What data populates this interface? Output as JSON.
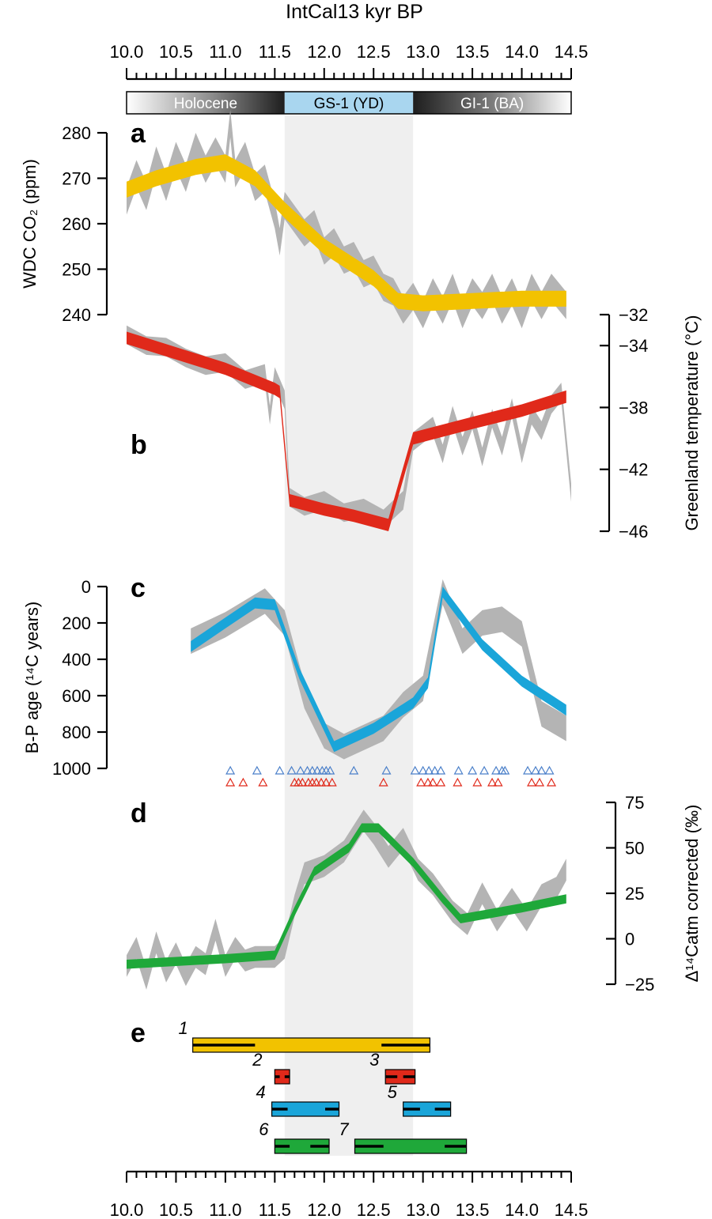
{
  "chart_data": {
    "type": "line",
    "title": "IntCal13 kyr BP",
    "x_axis": {
      "label": "IntCal13 kyr BP",
      "range": [
        10.0,
        14.5
      ],
      "ticks": [
        "10.0",
        "10.5",
        "11.0",
        "11.5",
        "12.0",
        "12.5",
        "13.0",
        "13.5",
        "14.0",
        "14.5"
      ]
    },
    "zones": [
      {
        "name": "Holocene",
        "start": 10.0,
        "end": 11.6
      },
      {
        "name": "GS-1 (YD)",
        "start": 11.6,
        "end": 12.9
      },
      {
        "name": "GI-1 (BA)",
        "start": 12.9,
        "end": 14.5
      }
    ],
    "yd_shading": [
      11.6,
      12.9
    ],
    "panels": [
      {
        "label": "a",
        "ylabel": "WDC CO₂ (ppm)",
        "axis_side": "left",
        "ylim": [
          240,
          280
        ],
        "ticks": [
          "240",
          "250",
          "260",
          "270",
          "280"
        ],
        "color": "#F2C200",
        "series": [
          [
            10.0,
            267.5
          ],
          [
            10.3,
            270
          ],
          [
            10.7,
            272.5
          ],
          [
            11.0,
            273.5
          ],
          [
            11.3,
            270
          ],
          [
            11.6,
            263
          ],
          [
            12.0,
            255
          ],
          [
            12.5,
            248
          ],
          [
            12.75,
            243
          ],
          [
            13.0,
            242.5
          ],
          [
            13.5,
            243
          ],
          [
            14.0,
            243.5
          ],
          [
            14.45,
            243.5
          ]
        ],
        "band_width": 3.5,
        "gray": [
          [
            10.0,
            265
          ],
          [
            10.1,
            271
          ],
          [
            10.2,
            266
          ],
          [
            10.3,
            274
          ],
          [
            10.4,
            268
          ],
          [
            10.5,
            275
          ],
          [
            10.6,
            270
          ],
          [
            10.7,
            277
          ],
          [
            10.8,
            272
          ],
          [
            10.9,
            276
          ],
          [
            11.0,
            272
          ],
          [
            11.05,
            282
          ],
          [
            11.1,
            271
          ],
          [
            11.2,
            275
          ],
          [
            11.3,
            268
          ],
          [
            11.4,
            270
          ],
          [
            11.5,
            262
          ],
          [
            11.55,
            256
          ],
          [
            11.6,
            264
          ],
          [
            11.7,
            261
          ],
          [
            11.8,
            258
          ],
          [
            11.9,
            260
          ],
          [
            12.0,
            254
          ],
          [
            12.1,
            256
          ],
          [
            12.2,
            252
          ],
          [
            12.3,
            253
          ],
          [
            12.4,
            249
          ],
          [
            12.5,
            250
          ],
          [
            12.6,
            246
          ],
          [
            12.7,
            245
          ],
          [
            12.8,
            241
          ],
          [
            12.9,
            244
          ],
          [
            13.0,
            240
          ],
          [
            13.1,
            245
          ],
          [
            13.2,
            241
          ],
          [
            13.3,
            246
          ],
          [
            13.4,
            240
          ],
          [
            13.5,
            245
          ],
          [
            13.6,
            242
          ],
          [
            13.7,
            246
          ],
          [
            13.8,
            241
          ],
          [
            13.9,
            245
          ],
          [
            14.0,
            240
          ],
          [
            14.1,
            246
          ],
          [
            14.2,
            242
          ],
          [
            14.3,
            246
          ],
          [
            14.45,
            242
          ]
        ],
        "gray_width": 6
      },
      {
        "label": "b",
        "ylabel": "Greenland temperature (°C)",
        "axis_side": "right",
        "ylim": [
          -46,
          -32
        ],
        "ticks": [
          "−32",
          "−34",
          "−38",
          "−42",
          "−46"
        ],
        "color": "#E0291A",
        "series": [
          [
            10.0,
            -33.5
          ],
          [
            10.5,
            -34.5
          ],
          [
            11.0,
            -35.5
          ],
          [
            11.5,
            -36.8
          ],
          [
            11.55,
            -37
          ],
          [
            11.65,
            -44
          ],
          [
            12.0,
            -44.6
          ],
          [
            12.3,
            -45
          ],
          [
            12.65,
            -45.6
          ],
          [
            12.9,
            -40
          ],
          [
            13.5,
            -39
          ],
          [
            14.0,
            -38.2
          ],
          [
            14.45,
            -37.3
          ]
        ],
        "band_width": 0.8,
        "gray": [
          [
            10.0,
            -33.3
          ],
          [
            10.2,
            -34
          ],
          [
            10.4,
            -34.1
          ],
          [
            10.6,
            -34.8
          ],
          [
            10.8,
            -35.3
          ],
          [
            11.0,
            -35.1
          ],
          [
            11.2,
            -36.2
          ],
          [
            11.4,
            -35.8
          ],
          [
            11.45,
            -38.5
          ],
          [
            11.5,
            -36
          ],
          [
            11.6,
            -37.5
          ],
          [
            11.65,
            -43.8
          ],
          [
            11.8,
            -44.4
          ],
          [
            12.0,
            -44
          ],
          [
            12.2,
            -44.8
          ],
          [
            12.4,
            -44.5
          ],
          [
            12.6,
            -45.2
          ],
          [
            12.8,
            -44
          ],
          [
            12.9,
            -40.2
          ],
          [
            13.0,
            -39.7
          ],
          [
            13.1,
            -39.2
          ],
          [
            13.2,
            -41
          ],
          [
            13.3,
            -38.5
          ],
          [
            13.4,
            -40.5
          ],
          [
            13.5,
            -38.8
          ],
          [
            13.6,
            -41.2
          ],
          [
            13.7,
            -38.7
          ],
          [
            13.8,
            -40.5
          ],
          [
            13.9,
            -38
          ],
          [
            14.0,
            -41
          ],
          [
            14.1,
            -38.5
          ],
          [
            14.2,
            -39.5
          ],
          [
            14.3,
            -37.8
          ],
          [
            14.4,
            -37
          ],
          [
            14.5,
            -43.5
          ]
        ],
        "gray_width": 1.2
      },
      {
        "label": "c",
        "ylabel": "B-P age (¹⁴C years)",
        "axis_side": "left",
        "ylim": [
          0,
          1000
        ],
        "ticks": [
          "0",
          "200",
          "400",
          "600",
          "800",
          "1000"
        ],
        "color": "#1AA5D9",
        "series": [
          [
            10.65,
            330
          ],
          [
            11.0,
            200
          ],
          [
            11.3,
            90
          ],
          [
            11.5,
            100
          ],
          [
            11.75,
            480
          ],
          [
            12.1,
            880
          ],
          [
            12.5,
            780
          ],
          [
            12.9,
            640
          ],
          [
            13.05,
            530
          ],
          [
            13.2,
            30
          ],
          [
            13.6,
            320
          ],
          [
            14.0,
            520
          ],
          [
            14.45,
            680
          ]
        ],
        "band_width": 60,
        "gray": [
          [
            10.65,
            300
          ],
          [
            11.0,
            210
          ],
          [
            11.4,
            80
          ],
          [
            11.6,
            200
          ],
          [
            11.8,
            600
          ],
          [
            12.0,
            820
          ],
          [
            12.2,
            880
          ],
          [
            12.4,
            830
          ],
          [
            12.6,
            780
          ],
          [
            12.8,
            650
          ],
          [
            13.0,
            560
          ],
          [
            13.2,
            30
          ],
          [
            13.4,
            300
          ],
          [
            13.6,
            200
          ],
          [
            13.8,
            180
          ],
          [
            14.0,
            260
          ],
          [
            14.2,
            700
          ],
          [
            14.45,
            780
          ]
        ],
        "gray_width": 140,
        "triangles_blue": [
          11.05,
          11.32,
          11.55,
          11.67,
          11.76,
          11.83,
          11.88,
          11.93,
          11.98,
          12.02,
          12.06,
          12.3,
          12.63,
          12.92,
          13.0,
          13.06,
          13.12,
          13.18,
          13.36,
          13.5,
          13.62,
          13.74,
          13.8,
          13.83,
          14.06,
          14.14,
          14.2,
          14.28
        ],
        "triangles_red": [
          11.05,
          11.18,
          11.38,
          11.7,
          11.74,
          11.78,
          11.84,
          11.88,
          11.92,
          11.97,
          12.02,
          12.08,
          12.6,
          12.98,
          13.05,
          13.1,
          13.18,
          13.35,
          13.55,
          13.7,
          13.76,
          14.1,
          14.18,
          14.3
        ]
      },
      {
        "label": "d",
        "ylabel": "Δ¹⁴Catm corrected (‰)",
        "axis_side": "right",
        "ylim": [
          -25,
          75
        ],
        "ticks": [
          "75",
          "50",
          "25",
          "0",
          "−25"
        ],
        "color": "#1FA83A",
        "series": [
          [
            10.0,
            -14
          ],
          [
            10.5,
            -12.5
          ],
          [
            11.0,
            -11
          ],
          [
            11.5,
            -9
          ],
          [
            11.7,
            15
          ],
          [
            11.9,
            37
          ],
          [
            12.25,
            50
          ],
          [
            12.38,
            61
          ],
          [
            12.55,
            61
          ],
          [
            12.9,
            42
          ],
          [
            13.2,
            22
          ],
          [
            13.38,
            11
          ],
          [
            13.7,
            14
          ],
          [
            14.0,
            17
          ],
          [
            14.45,
            22
          ]
        ],
        "band_width": 5,
        "gray": [
          [
            10.0,
            -15
          ],
          [
            10.1,
            -5
          ],
          [
            10.2,
            -22
          ],
          [
            10.3,
            -2
          ],
          [
            10.4,
            -18
          ],
          [
            10.5,
            -8
          ],
          [
            10.6,
            -20
          ],
          [
            10.7,
            -10
          ],
          [
            10.8,
            -14
          ],
          [
            10.9,
            5
          ],
          [
            11.0,
            -15
          ],
          [
            11.1,
            -5
          ],
          [
            11.2,
            -12
          ],
          [
            11.3,
            -10
          ],
          [
            11.5,
            -10
          ],
          [
            11.6,
            -5
          ],
          [
            11.7,
            18
          ],
          [
            11.8,
            36
          ],
          [
            12.0,
            40
          ],
          [
            12.2,
            48
          ],
          [
            12.4,
            65
          ],
          [
            12.5,
            58
          ],
          [
            12.65,
            45
          ],
          [
            12.8,
            55
          ],
          [
            12.95,
            38
          ],
          [
            13.1,
            30
          ],
          [
            13.3,
            15
          ],
          [
            13.45,
            8
          ],
          [
            13.6,
            25
          ],
          [
            13.75,
            10
          ],
          [
            13.9,
            22
          ],
          [
            14.05,
            10
          ],
          [
            14.2,
            24
          ],
          [
            14.35,
            28
          ],
          [
            14.45,
            38
          ]
        ],
        "gray_width": 12
      }
    ],
    "panel_e": {
      "label": "e",
      "ranges": [
        {
          "id": "1",
          "start": 10.67,
          "end": 13.07,
          "inner": [
            11.3,
            12.58
          ],
          "color": "#F2C200"
        },
        {
          "id": "2",
          "start": 11.5,
          "end": 11.65,
          "inner": [
            11.55,
            11.6
          ],
          "color": "#E0291A"
        },
        {
          "id": "3",
          "start": 12.62,
          "end": 12.92,
          "inner": [
            12.74,
            12.8
          ],
          "color": "#E0291A"
        },
        {
          "id": "4",
          "start": 11.47,
          "end": 12.15,
          "inner": [
            11.63,
            12.01
          ],
          "color": "#1AA5D9"
        },
        {
          "id": "5",
          "start": 12.8,
          "end": 13.28,
          "inner": [
            12.97,
            13.12
          ],
          "color": "#1AA5D9"
        },
        {
          "id": "6",
          "start": 11.5,
          "end": 12.05,
          "inner": [
            11.65,
            11.86
          ],
          "color": "#1FA83A"
        },
        {
          "id": "7",
          "start": 12.31,
          "end": 13.44,
          "inner": [
            12.6,
            13.22
          ],
          "color": "#1FA83A"
        }
      ]
    }
  }
}
